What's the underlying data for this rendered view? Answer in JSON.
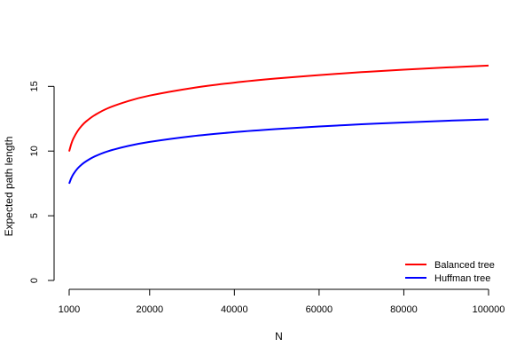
{
  "chart_data": {
    "type": "line",
    "title": "",
    "xlabel": "N",
    "ylabel": "Expected path length",
    "xlim": [
      1000,
      100000
    ],
    "ylim": [
      0,
      16.6
    ],
    "x_ticks": [
      {
        "value": 1000,
        "label": "1000"
      },
      {
        "value": 20000,
        "label": "20000"
      },
      {
        "value": 40000,
        "label": "40000"
      },
      {
        "value": 60000,
        "label": "60000"
      },
      {
        "value": 80000,
        "label": "80000"
      },
      {
        "value": 100000,
        "label": "100000"
      }
    ],
    "y_ticks": [
      {
        "value": 0,
        "label": "0"
      },
      {
        "value": 5,
        "label": "5"
      },
      {
        "value": 10,
        "label": "10"
      },
      {
        "value": 15,
        "label": "15"
      }
    ],
    "grid": false,
    "legend_position": "bottom-right",
    "x": [
      1000,
      1500,
      2000,
      3000,
      4000,
      5000,
      7000,
      10000,
      15000,
      20000,
      30000,
      40000,
      50000,
      60000,
      70000,
      80000,
      90000,
      100000
    ],
    "series": [
      {
        "name": "Balanced tree",
        "color": "#ff0000",
        "values": [
          9.97,
          10.55,
          10.97,
          11.55,
          11.97,
          12.29,
          12.77,
          13.29,
          13.87,
          14.29,
          14.87,
          15.29,
          15.61,
          15.87,
          16.1,
          16.29,
          16.46,
          16.61
        ]
      },
      {
        "name": "Huffman tree",
        "color": "#0000ff",
        "values": [
          7.48,
          7.91,
          8.22,
          8.66,
          8.97,
          9.21,
          9.58,
          9.97,
          10.4,
          10.71,
          11.15,
          11.46,
          11.7,
          11.9,
          12.07,
          12.21,
          12.34,
          12.45
        ]
      }
    ]
  }
}
